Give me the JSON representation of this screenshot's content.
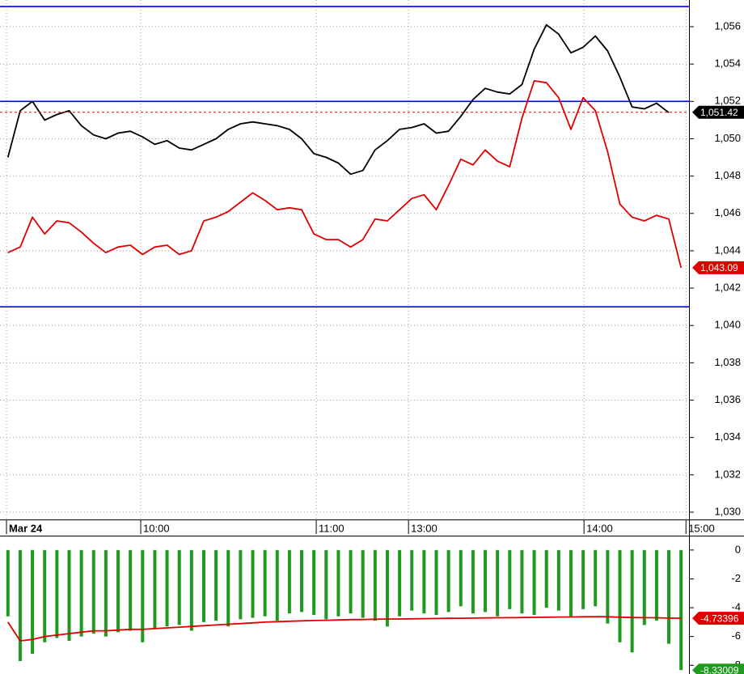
{
  "chart_data": [
    {
      "type": "line",
      "xlim": [
        -0.65,
        55.65
      ],
      "xticks": [
        {
          "value": -0.12,
          "label": "Mar 24"
        },
        {
          "value": 10.85,
          "label": "10:00"
        },
        {
          "value": 25.19,
          "label": "11:00"
        },
        {
          "value": 32.73,
          "label": "13:00"
        },
        {
          "value": 47.07,
          "label": "14:00"
        },
        {
          "value": 55.4,
          "label": "15:00"
        }
      ],
      "ylim": [
        1029.61,
        1057.43
      ],
      "yticks": [
        {
          "value": 1030,
          "label": "1,030"
        },
        {
          "value": 1032,
          "label": "1,032"
        },
        {
          "value": 1034,
          "label": "1,034"
        },
        {
          "value": 1036,
          "label": "1,036"
        },
        {
          "value": 1038,
          "label": "1,038"
        },
        {
          "value": 1040,
          "label": "1,040"
        },
        {
          "value": 1042,
          "label": "1,042"
        },
        {
          "value": 1044,
          "label": "1,044"
        },
        {
          "value": 1046,
          "label": "1,046"
        },
        {
          "value": 1048,
          "label": "1,048"
        },
        {
          "value": 1050,
          "label": "1,050"
        },
        {
          "value": 1052,
          "label": "1,052"
        },
        {
          "value": 1054,
          "label": "1,054"
        },
        {
          "value": 1056,
          "label": "1,056"
        }
      ],
      "grid": true,
      "series": [
        {
          "color": "#000000",
          "values": [
            1049,
            1051.5,
            1052,
            1051,
            1051.3,
            1051.5,
            1050.7,
            1050.2,
            1050,
            1050.3,
            1050.4,
            1050.1,
            1049.7,
            1049.9,
            1049.5,
            1049.4,
            1049.7,
            1050,
            1050.5,
            1050.8,
            1050.9,
            1050.8,
            1050.7,
            1050.5,
            1050,
            1049.2,
            1049,
            1048.7,
            1048.1,
            1048.3,
            1049.4,
            1049.9,
            1050.5,
            1050.6,
            1050.8,
            1050.3,
            1050.4,
            1051.2,
            1052.1,
            1052.7,
            1052.5,
            1052.4,
            1052.9,
            1054.8,
            1056.1,
            1055.6,
            1054.6,
            1054.9,
            1055.5,
            1054.7,
            1053.3,
            1051.7,
            1051.6,
            1051.9,
            1051.4,
            null
          ]
        },
        {
          "color": "#e00000",
          "values": [
            1043.9,
            1044.2,
            1045.8,
            1044.9,
            1045.6,
            1045.5,
            1045.0,
            1044.4,
            1043.9,
            1044.2,
            1044.3,
            1043.8,
            1044.2,
            1044.3,
            1043.8,
            1044.0,
            1045.6,
            1045.8,
            1046.1,
            1046.6,
            1047.1,
            1046.7,
            1046.2,
            1046.3,
            1046.2,
            1044.9,
            1044.6,
            1044.6,
            1044.2,
            1044.6,
            1045.7,
            1045.6,
            1046.2,
            1046.8,
            1047.0,
            1046.2,
            1047.5,
            1048.9,
            1048.6,
            1049.4,
            1048.8,
            1048.5,
            1051.1,
            1053.1,
            1053,
            1052.2,
            1050.5,
            1052.2,
            1051.5,
            1049.3,
            1046.5,
            1045.8,
            1045.6,
            1045.9,
            1045.7,
            1043.09
          ]
        }
      ],
      "hlines": {
        "color": "#0000ff",
        "values": [
          1057.08,
          1052,
          1041
        ]
      },
      "badges": [
        {
          "value": 1051.42,
          "label": "1,051.42",
          "color": "#000000",
          "dashed": true
        },
        {
          "value": 1043.09,
          "label": "1,043.09",
          "color": "#e00000"
        }
      ]
    },
    {
      "type": "bar",
      "xlim": [
        -0.65,
        55.65
      ],
      "ylim": [
        -8.6,
        1.0
      ],
      "yticks": [
        0,
        -2,
        -4,
        -6,
        -8
      ],
      "series": [
        {
          "type": "bar",
          "color": "#1e9a1e",
          "values": [
            -4.6,
            -7.7,
            -7.2,
            -6.4,
            -6.1,
            -6.3,
            -6.0,
            -5.8,
            -6.0,
            -5.7,
            -5.6,
            -6.4,
            -5.5,
            -5.3,
            -5.2,
            -5.6,
            -5.0,
            -4.9,
            -5.3,
            -4.8,
            -4.7,
            -4.6,
            -4.9,
            -4.4,
            -4.3,
            -4.5,
            -4.8,
            -4.6,
            -4.4,
            -4.7,
            -4.9,
            -5.3,
            -4.6,
            -4.2,
            -4.4,
            -4.5,
            -4.3,
            -3.9,
            -4.4,
            -4.3,
            -4.6,
            -4.1,
            -4.4,
            -4.5,
            -4.0,
            -4.2,
            -4.6,
            -4.1,
            -3.9,
            -5.1,
            -6.4,
            -7.1,
            -5.2,
            -4.9,
            -6.5,
            -8.33
          ]
        },
        {
          "type": "line",
          "color": "#e00000",
          "values": [
            -5.0,
            -6.3,
            -6.2,
            -6.0,
            -5.9,
            -5.8,
            -5.7,
            -5.6,
            -5.6,
            -5.55,
            -5.5,
            -5.5,
            -5.45,
            -5.4,
            -5.35,
            -5.3,
            -5.25,
            -5.2,
            -5.15,
            -5.1,
            -5.05,
            -5.0,
            -4.97,
            -4.94,
            -4.91,
            -4.89,
            -4.87,
            -4.85,
            -4.83,
            -4.82,
            -4.8,
            -4.79,
            -4.78,
            -4.77,
            -4.76,
            -4.75,
            -4.74,
            -4.73,
            -4.72,
            -4.71,
            -4.7,
            -4.69,
            -4.68,
            -4.67,
            -4.66,
            -4.65,
            -4.64,
            -4.63,
            -4.62,
            -4.63,
            -4.66,
            -4.68,
            -4.69,
            -4.7,
            -4.72,
            -4.73396
          ]
        }
      ],
      "badges": [
        {
          "value": -4.73396,
          "label": "-4.73396",
          "color": "#e00000"
        },
        {
          "value": -8.33009,
          "label": "-8.33009",
          "color": "#1e9a1e"
        }
      ]
    }
  ]
}
